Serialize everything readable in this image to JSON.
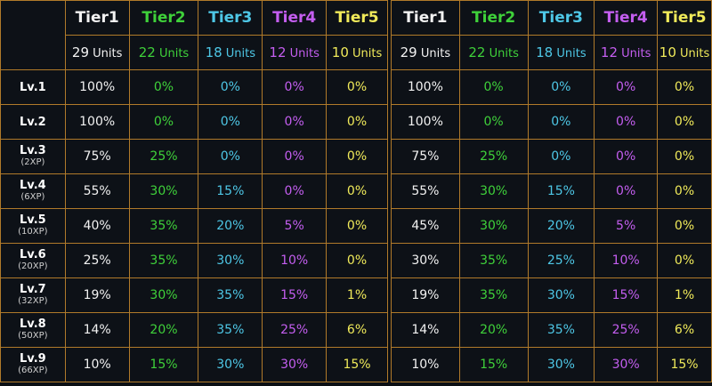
{
  "tiers": [
    {
      "label": "Tier1",
      "units": "29",
      "color": "#f2f2f2"
    },
    {
      "label": "Tier2",
      "units": "22",
      "color": "#3fd13a"
    },
    {
      "label": "Tier3",
      "units": "18",
      "color": "#4ec7e6"
    },
    {
      "label": "Tier4",
      "units": "12",
      "color": "#c45ef0"
    },
    {
      "label": "Tier5",
      "units": "10",
      "color": "#f0ea5a"
    }
  ],
  "units_suffix": "Units",
  "levels": [
    {
      "label": "Lv.1",
      "xp": ""
    },
    {
      "label": "Lv.2",
      "xp": ""
    },
    {
      "label": "Lv.3",
      "xp": "(2XP)"
    },
    {
      "label": "Lv.4",
      "xp": "(6XP)"
    },
    {
      "label": "Lv.5",
      "xp": "(10XP)"
    },
    {
      "label": "Lv.6",
      "xp": "(20XP)"
    },
    {
      "label": "Lv.7",
      "xp": "(32XP)"
    },
    {
      "label": "Lv.8",
      "xp": "(50XP)"
    },
    {
      "label": "Lv.9",
      "xp": "(66XP)"
    }
  ],
  "table_left": [
    [
      "100%",
      "0%",
      "0%",
      "0%",
      "0%"
    ],
    [
      "100%",
      "0%",
      "0%",
      "0%",
      "0%"
    ],
    [
      "75%",
      "25%",
      "0%",
      "0%",
      "0%"
    ],
    [
      "55%",
      "30%",
      "15%",
      "0%",
      "0%"
    ],
    [
      "40%",
      "35%",
      "20%",
      "5%",
      "0%"
    ],
    [
      "25%",
      "35%",
      "30%",
      "10%",
      "0%"
    ],
    [
      "19%",
      "30%",
      "35%",
      "15%",
      "1%"
    ],
    [
      "14%",
      "20%",
      "35%",
      "25%",
      "6%"
    ],
    [
      "10%",
      "15%",
      "30%",
      "30%",
      "15%"
    ]
  ],
  "table_right": [
    [
      "100%",
      "0%",
      "0%",
      "0%",
      "0%"
    ],
    [
      "100%",
      "0%",
      "0%",
      "0%",
      "0%"
    ],
    [
      "75%",
      "25%",
      "0%",
      "0%",
      "0%"
    ],
    [
      "55%",
      "30%",
      "15%",
      "0%",
      "0%"
    ],
    [
      "45%",
      "30%",
      "20%",
      "5%",
      "0%"
    ],
    [
      "30%",
      "35%",
      "25%",
      "10%",
      "0%"
    ],
    [
      "19%",
      "35%",
      "30%",
      "15%",
      "1%"
    ],
    [
      "14%",
      "20%",
      "35%",
      "25%",
      "6%"
    ],
    [
      "10%",
      "15%",
      "30%",
      "30%",
      "15%"
    ]
  ]
}
